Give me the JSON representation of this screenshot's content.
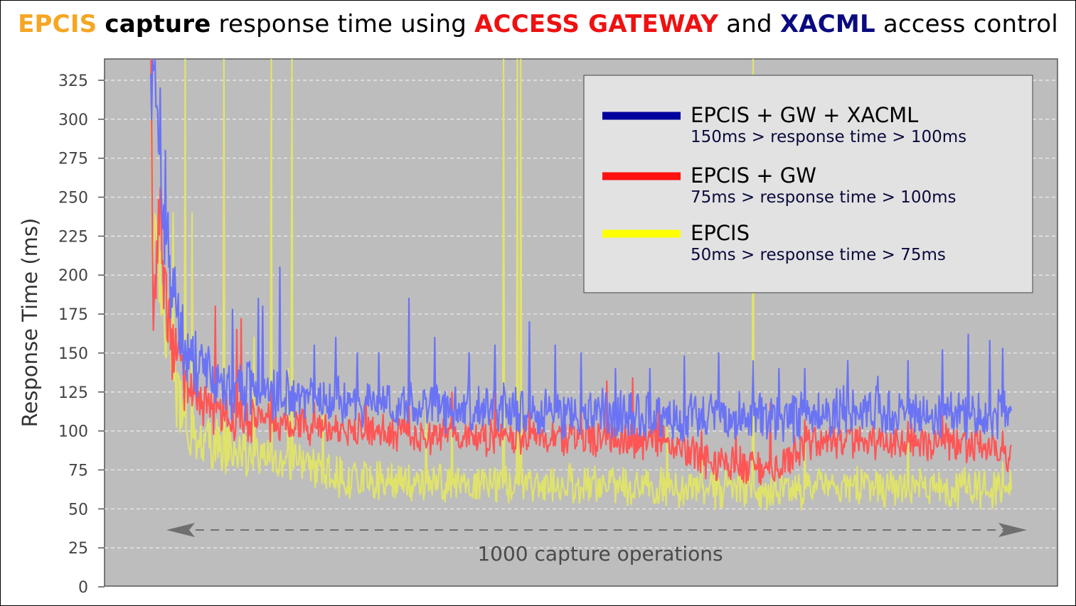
{
  "chart_data": {
    "type": "line",
    "title": "EPCIS capture response time using ACCESS GATEWAY and XACML access control",
    "title_parts": [
      {
        "text": "EPCIS",
        "color": "#f5a623",
        "css": "color:#f5a623"
      },
      {
        "text": "capture",
        "color": "#000000",
        "css": "color:#000000"
      },
      {
        "text": "response time using",
        "color": "#000000",
        "css": "color:#000000"
      },
      {
        "text": "ACCESS GATEWAY",
        "color": "#ee1111",
        "css": "color:#ee1111"
      },
      {
        "text": "and",
        "color": "#000000",
        "css": "color:#000000"
      },
      {
        "text": "XACML",
        "color": "#0a0a80",
        "css": "color:#0a0a80"
      },
      {
        "text": "access control",
        "color": "#000000",
        "css": "color:#000000"
      }
    ],
    "xlabel": "",
    "ylabel": "Response Time (ms)",
    "ylim": [
      0,
      340
    ],
    "yticks": [
      0,
      25,
      50,
      75,
      100,
      125,
      150,
      175,
      200,
      225,
      250,
      275,
      300,
      325
    ],
    "xlim": [
      0,
      1000
    ],
    "grid": true,
    "legend_position": "top-right",
    "annotation": "1000 capture operations",
    "background_color": "#bdbdbd",
    "series": [
      {
        "name": "EPCIS + GW + XACML",
        "note": "150ms > response time > 100ms",
        "color": "#6b73f5",
        "legend_color": "#00009e",
        "points": [
          [
            0,
            320
          ],
          [
            5,
            340
          ],
          [
            9,
            270
          ],
          [
            13,
            250
          ],
          [
            18,
            220
          ],
          [
            22,
            200
          ],
          [
            27,
            185
          ],
          [
            33,
            165
          ],
          [
            38,
            150
          ],
          [
            45,
            145
          ],
          [
            55,
            140
          ],
          [
            65,
            135
          ],
          [
            75,
            130
          ],
          [
            85,
            128
          ],
          [
            95,
            127
          ],
          [
            105,
            125
          ],
          [
            120,
            124
          ],
          [
            140,
            123
          ],
          [
            160,
            122
          ],
          [
            180,
            121
          ],
          [
            200,
            121
          ],
          [
            230,
            120
          ],
          [
            260,
            118
          ],
          [
            290,
            117
          ],
          [
            320,
            116
          ],
          [
            350,
            115
          ],
          [
            380,
            114
          ],
          [
            410,
            113
          ],
          [
            440,
            113
          ],
          [
            470,
            112
          ],
          [
            500,
            112
          ],
          [
            530,
            111
          ],
          [
            560,
            111
          ],
          [
            590,
            110
          ],
          [
            620,
            110
          ],
          [
            650,
            110
          ],
          [
            680,
            110
          ],
          [
            710,
            110
          ],
          [
            740,
            110
          ],
          [
            770,
            111
          ],
          [
            800,
            114
          ],
          [
            830,
            112
          ],
          [
            860,
            111
          ],
          [
            890,
            111
          ],
          [
            920,
            110
          ],
          [
            950,
            110
          ],
          [
            980,
            110
          ],
          [
            995,
            113
          ]
        ],
        "peaks": [
          [
            11,
            320
          ],
          [
            17,
            280
          ],
          [
            20,
            240
          ],
          [
            40,
            158
          ],
          [
            60,
            150
          ],
          [
            95,
            178
          ],
          [
            125,
            185
          ],
          [
            130,
            180
          ],
          [
            150,
            205
          ],
          [
            190,
            155
          ],
          [
            215,
            160
          ],
          [
            240,
            150
          ],
          [
            265,
            150
          ],
          [
            300,
            185
          ],
          [
            330,
            160
          ],
          [
            370,
            150
          ],
          [
            400,
            155
          ],
          [
            440,
            170
          ],
          [
            470,
            155
          ],
          [
            500,
            150
          ],
          [
            540,
            140
          ],
          [
            580,
            140
          ],
          [
            620,
            148
          ],
          [
            660,
            150
          ],
          [
            700,
            145
          ],
          [
            730,
            140
          ],
          [
            760,
            140
          ],
          [
            810,
            145
          ],
          [
            845,
            135
          ],
          [
            880,
            145
          ],
          [
            920,
            152
          ],
          [
            950,
            162
          ],
          [
            975,
            158
          ],
          [
            990,
            153
          ]
        ]
      },
      {
        "name": "EPCIS + GW",
        "note": "75ms > response time > 100ms",
        "color": "#ff5555",
        "legend_color": "#ff1111",
        "points": [
          [
            0,
            340
          ],
          [
            3,
            180
          ],
          [
            7,
            210
          ],
          [
            11,
            255
          ],
          [
            15,
            190
          ],
          [
            20,
            175
          ],
          [
            25,
            155
          ],
          [
            30,
            145
          ],
          [
            40,
            130
          ],
          [
            50,
            125
          ],
          [
            60,
            118
          ],
          [
            75,
            112
          ],
          [
            90,
            110
          ],
          [
            110,
            108
          ],
          [
            130,
            106
          ],
          [
            160,
            104
          ],
          [
            200,
            102
          ],
          [
            240,
            100
          ],
          [
            280,
            99
          ],
          [
            320,
            97
          ],
          [
            360,
            96
          ],
          [
            400,
            96
          ],
          [
            440,
            95
          ],
          [
            480,
            95
          ],
          [
            520,
            95
          ],
          [
            560,
            94
          ],
          [
            600,
            93
          ],
          [
            620,
            88
          ],
          [
            640,
            82
          ],
          [
            660,
            80
          ],
          [
            680,
            79
          ],
          [
            700,
            78
          ],
          [
            720,
            78
          ],
          [
            740,
            80
          ],
          [
            760,
            93
          ],
          [
            800,
            94
          ],
          [
            840,
            93
          ],
          [
            880,
            93
          ],
          [
            920,
            92
          ],
          [
            950,
            92
          ],
          [
            980,
            91
          ],
          [
            995,
            85
          ]
        ],
        "peaks": [
          [
            75,
            180
          ],
          [
            100,
            165
          ],
          [
            105,
            172
          ],
          [
            140,
            130
          ],
          [
            190,
            118
          ],
          [
            250,
            122
          ],
          [
            300,
            118
          ],
          [
            350,
            125
          ],
          [
            400,
            126
          ],
          [
            440,
            120
          ],
          [
            500,
            115
          ],
          [
            530,
            132
          ],
          [
            560,
            134
          ],
          [
            590,
            120
          ],
          [
            640,
            100
          ],
          [
            680,
            100
          ],
          [
            720,
            118
          ],
          [
            760,
            107
          ],
          [
            800,
            106
          ],
          [
            840,
            105
          ],
          [
            880,
            106
          ],
          [
            920,
            110
          ],
          [
            960,
            105
          ],
          [
            990,
            100
          ]
        ]
      },
      {
        "name": "EPCIS",
        "note": "50ms > response time > 75ms",
        "color": "#e0e36b",
        "legend_color": "#ffff00",
        "points": [
          [
            0,
            340
          ],
          [
            2,
            220
          ],
          [
            5,
            240
          ],
          [
            10,
            205
          ],
          [
            15,
            180
          ],
          [
            20,
            160
          ],
          [
            25,
            140
          ],
          [
            30,
            120
          ],
          [
            40,
            100
          ],
          [
            50,
            95
          ],
          [
            60,
            92
          ],
          [
            75,
            90
          ],
          [
            90,
            88
          ],
          [
            110,
            85
          ],
          [
            130,
            83
          ],
          [
            150,
            80
          ],
          [
            180,
            78
          ],
          [
            200,
            73
          ],
          [
            230,
            70
          ],
          [
            260,
            68
          ],
          [
            300,
            67
          ],
          [
            340,
            66
          ],
          [
            380,
            66
          ],
          [
            420,
            66
          ],
          [
            460,
            66
          ],
          [
            500,
            66
          ],
          [
            540,
            65
          ],
          [
            580,
            64
          ],
          [
            620,
            64
          ],
          [
            660,
            63
          ],
          [
            700,
            63
          ],
          [
            740,
            63
          ],
          [
            780,
            63
          ],
          [
            820,
            64
          ],
          [
            860,
            63
          ],
          [
            900,
            63
          ],
          [
            940,
            63
          ],
          [
            980,
            63
          ],
          [
            995,
            65
          ]
        ],
        "peaks": [
          [
            40,
            340
          ],
          [
            85,
            340
          ],
          [
            140,
            340
          ],
          [
            160,
            340
          ],
          [
            164,
            340
          ],
          [
            410,
            340
          ],
          [
            426,
            340
          ],
          [
            430,
            340
          ],
          [
            700,
            340
          ],
          [
            26,
            240
          ],
          [
            48,
            240
          ],
          [
            120,
            160
          ],
          [
            160,
            140
          ],
          [
            200,
            125
          ],
          [
            320,
            115
          ],
          [
            350,
            120
          ],
          [
            600,
            104
          ],
          [
            640,
            97
          ],
          [
            760,
            100
          ],
          [
            880,
            101
          ],
          [
            990,
            80
          ]
        ]
      }
    ]
  }
}
